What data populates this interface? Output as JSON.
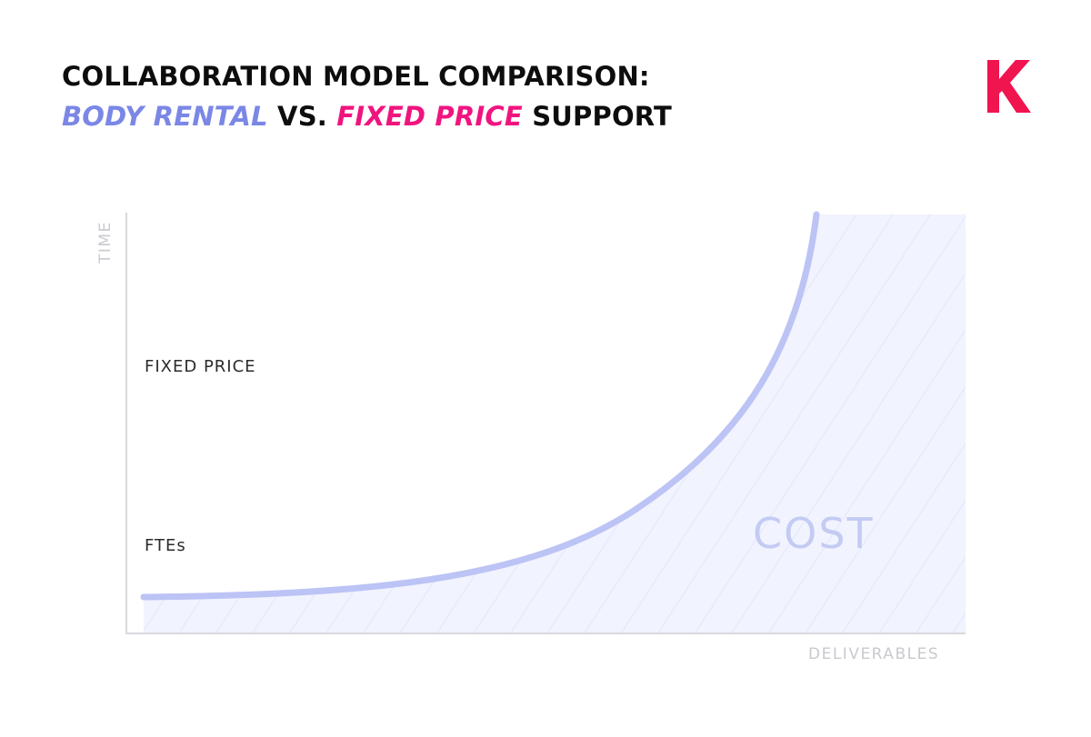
{
  "title": {
    "line1": "COLLABORATION MODEL COMPARISON:",
    "body_rental": "BODY RENTAL",
    "vs": " VS. ",
    "fixed_price": "FIXED PRICE",
    "support": " SUPPORT"
  },
  "logo": {
    "letter": "K"
  },
  "axes": {
    "y_label": "TIME",
    "x_label": "DELIVERABLES"
  },
  "series": {
    "fixed_price": {
      "label": "FIXED PRICE",
      "trend": "constant"
    },
    "ftes": {
      "label": "FTEs",
      "trend": "exponential increase"
    }
  },
  "region_label": "COST",
  "colors": {
    "body_rental": "#7b87e6",
    "fixed_price_start": "#ff7b78",
    "fixed_price_end": "#f0057f",
    "curve": "#bcc3f5",
    "region_fill": "#f1f3fe",
    "axis": "#d9d9de",
    "logo": "#f0144f"
  }
}
